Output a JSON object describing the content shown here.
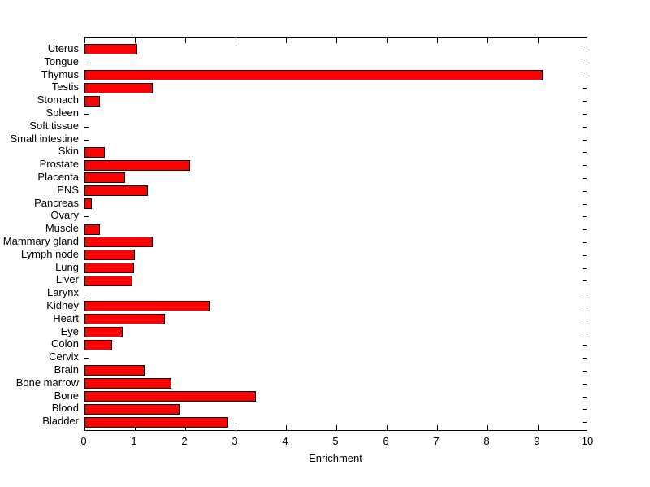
{
  "chart_data": {
    "type": "bar",
    "orientation": "horizontal",
    "title": "",
    "xlabel": "Enrichment",
    "ylabel": "",
    "xlim": [
      0,
      10
    ],
    "xticks": [
      0,
      1,
      2,
      3,
      4,
      5,
      6,
      7,
      8,
      9,
      10
    ],
    "grid": false,
    "legend": null,
    "bar_color": "#ff0000",
    "bar_border_color": "#000000",
    "background_color": "#ffffff",
    "categories": [
      "Uterus",
      "Tongue",
      "Thymus",
      "Testis",
      "Stomach",
      "Spleen",
      "Soft tissue",
      "Small intestine",
      "Skin",
      "Prostate",
      "Placenta",
      "PNS",
      "Pancreas",
      "Ovary",
      "Muscle",
      "Mammary gland",
      "Lymph node",
      "Lung",
      "Liver",
      "Larynx",
      "Kidney",
      "Heart",
      "Eye",
      "Colon",
      "Cervix",
      "Brain",
      "Bone marrow",
      "Bone",
      "Blood",
      "Bladder"
    ],
    "values": [
      1.05,
      0,
      9.1,
      1.35,
      0.3,
      0,
      0,
      0,
      0.4,
      2.1,
      0.8,
      1.25,
      0.15,
      0,
      0.3,
      1.35,
      1.0,
      0.98,
      0.95,
      0,
      2.48,
      1.6,
      0.75,
      0.55,
      0,
      1.2,
      1.73,
      3.4,
      1.88,
      2.85
    ]
  }
}
